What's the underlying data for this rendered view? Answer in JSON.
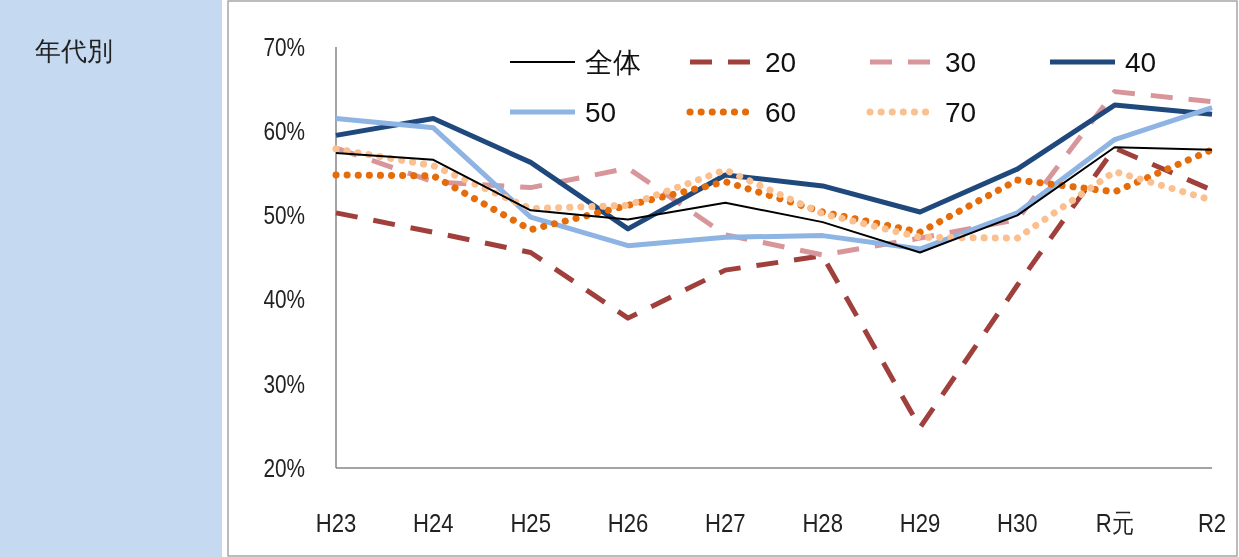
{
  "chart_data": {
    "type": "line",
    "annotations": [
      "年代別"
    ],
    "categories": [
      "H23",
      "H24",
      "H25",
      "H26",
      "H27",
      "H28",
      "H29",
      "H30",
      "R元",
      "R2"
    ],
    "ylim": [
      20,
      70
    ],
    "yticks": [
      {
        "value": 20,
        "label": "20%"
      },
      {
        "value": 30,
        "label": "30%"
      },
      {
        "value": 40,
        "label": "40%"
      },
      {
        "value": 50,
        "label": "50%"
      },
      {
        "value": 60,
        "label": "60%"
      },
      {
        "value": 70,
        "label": "70%"
      }
    ],
    "grid": false,
    "legend": "top",
    "marker": "none",
    "series": [
      {
        "name": "全体",
        "color": "#000000",
        "line_style": "solid",
        "values": [
          57.4,
          56.6,
          50.6,
          49.5,
          51.5,
          49.2,
          45.6,
          50.0,
          58.1,
          57.8
        ]
      },
      {
        "name": "20",
        "color": "#a0403c",
        "line_style": "dashed",
        "values": [
          50.3,
          48.0,
          45.6,
          37.8,
          43.5,
          45.2,
          24.8,
          41.7,
          58.0,
          53.0
        ]
      },
      {
        "name": "30",
        "color": "#d9969a",
        "line_style": "dashed",
        "values": [
          58.0,
          54.0,
          53.3,
          55.6,
          47.7,
          45.3,
          47.3,
          49.5,
          64.7,
          63.5
        ]
      },
      {
        "name": "40",
        "color": "#1f497d",
        "line_style": "solid",
        "values": [
          59.5,
          61.5,
          56.3,
          48.4,
          54.8,
          53.5,
          50.4,
          55.5,
          63.1,
          62.0
        ]
      },
      {
        "name": "50",
        "color": "#8db4e2",
        "line_style": "solid",
        "values": [
          61.5,
          60.4,
          49.8,
          46.4,
          47.4,
          47.6,
          46.0,
          50.3,
          59.0,
          62.8
        ]
      },
      {
        "name": "60",
        "color": "#e46c0a",
        "line_style": "dotted",
        "values": [
          54.8,
          54.7,
          48.3,
          51.2,
          54.0,
          50.4,
          48.0,
          54.2,
          52.8,
          57.8
        ]
      },
      {
        "name": "70",
        "color": "#fac090",
        "line_style": "dotted",
        "values": [
          57.9,
          55.9,
          50.8,
          51.2,
          55.4,
          50.2,
          47.4,
          47.3,
          55.2,
          51.8
        ]
      }
    ]
  }
}
